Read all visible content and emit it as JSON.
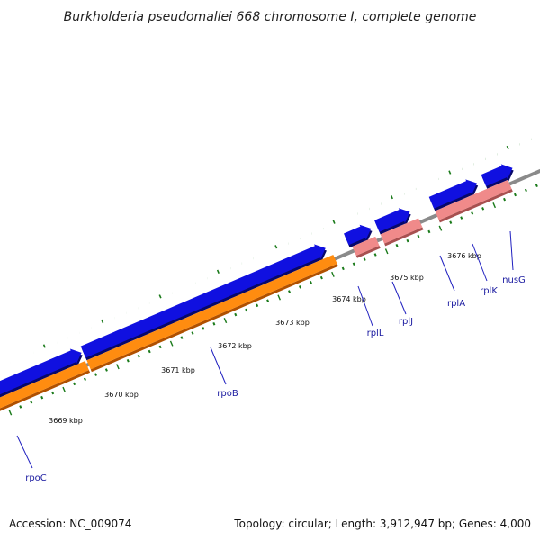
{
  "title": "Burkholderia pseudomallei 668 chromosome I, complete genome",
  "accession": "Accession: NC_009074",
  "topology": "Topology: circular; Length: 3,912,947 bp; Genes: 4,000",
  "ticks": [
    {
      "label": "3669 kbp"
    },
    {
      "label": "3670 kbp"
    },
    {
      "label": "3671 kbp"
    },
    {
      "label": "3672 kbp"
    },
    {
      "label": "3673 kbp"
    },
    {
      "label": "3674 kbp"
    },
    {
      "label": "3675 kbp"
    },
    {
      "label": "3676 kbp"
    }
  ],
  "genes": [
    {
      "label": "rpoC"
    },
    {
      "label": "rpoB"
    },
    {
      "label": "rplL"
    },
    {
      "label": "rplJ"
    },
    {
      "label": "rplA"
    },
    {
      "label": "rplK"
    },
    {
      "label": "nusG"
    }
  ],
  "colors": {
    "backbone": "#8a8a8a",
    "cds": "#1010e0",
    "cds_shadow": "#08086a",
    "gene_orange": "#ff8c10",
    "gene_orange_shadow": "#b05000",
    "gene_pink": "#f08a8a",
    "gene_pink_shadow": "#a85050",
    "gene_green": "#99ee55",
    "tick": "#1a7a1a",
    "label_line": "#2020c0"
  }
}
